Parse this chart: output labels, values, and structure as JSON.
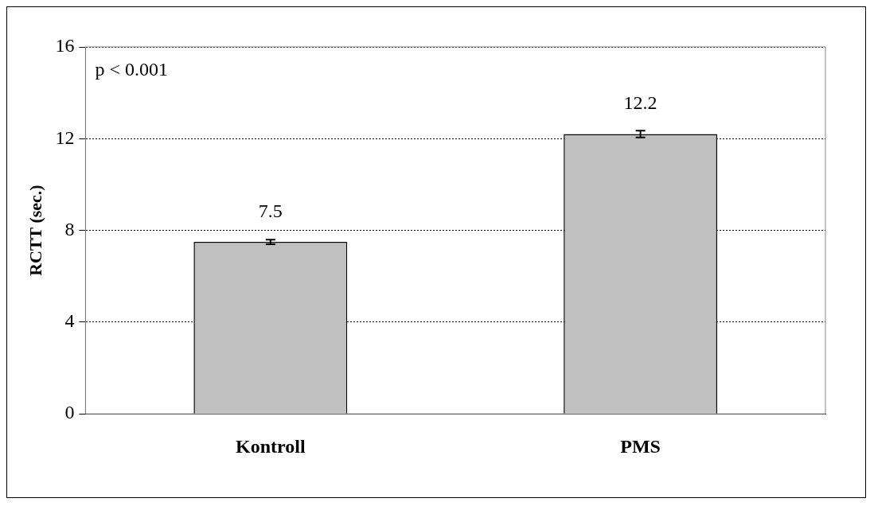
{
  "chart_data": {
    "type": "bar",
    "ylabel": "RCTT (sec.)",
    "categories": [
      "Kontroll",
      "PMS"
    ],
    "values": [
      7.5,
      12.2
    ],
    "errors": [
      0.1,
      0.15
    ],
    "color": "#c0c0c0",
    "ylim": [
      0,
      16
    ],
    "yticks": [
      0,
      4,
      8,
      12,
      16
    ],
    "grid": "y",
    "data_labels": true,
    "legend": false,
    "annotations": [
      "p < 0.001"
    ]
  }
}
